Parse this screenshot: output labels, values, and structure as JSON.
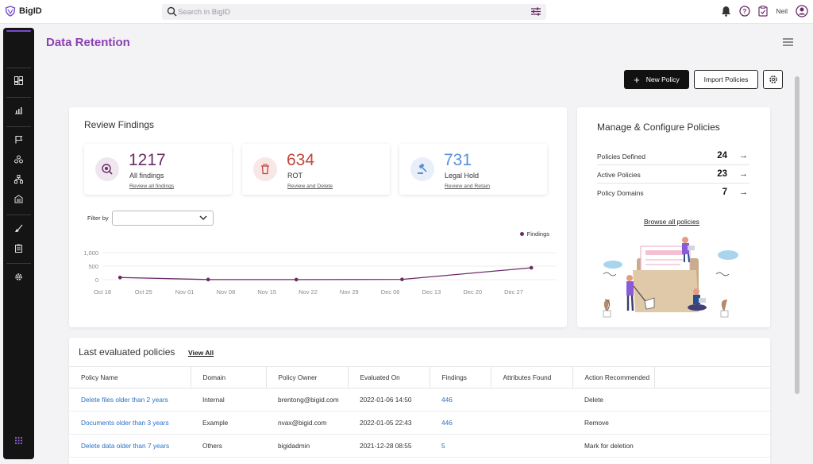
{
  "app": {
    "name": "BigID"
  },
  "search": {
    "placeholder": "Search in BigID"
  },
  "user": {
    "name": "Neil"
  },
  "page": {
    "title": "Data Retention"
  },
  "actions": {
    "new_policy": "New Policy",
    "import_policies": "Import Policies"
  },
  "review": {
    "title": "Review Findings",
    "stats": [
      {
        "value": "1217",
        "label": "All findings",
        "link": "Review all findings",
        "color": "#6a2c67",
        "icon": "eye-icon"
      },
      {
        "value": "634",
        "label": "ROT",
        "link": "Review and Delete",
        "color": "#c0473f",
        "icon": "trash-icon"
      },
      {
        "value": "731",
        "label": "Legal Hold",
        "link": "Review and Retain",
        "color": "#5b8fd8",
        "icon": "gavel-icon"
      }
    ],
    "filter_label": "Filter by",
    "filter_value": ""
  },
  "chart_data": {
    "type": "line",
    "series": [
      {
        "name": "Findings",
        "points": [
          [
            "Oct 21",
            80
          ],
          [
            "Nov 05",
            5
          ],
          [
            "Nov 20",
            3
          ],
          [
            "Dec 08",
            10
          ],
          [
            "Dec 30",
            440
          ]
        ]
      }
    ],
    "x_ticks": [
      "Oct 18",
      "Oct 25",
      "Nov 01",
      "Nov 08",
      "Nov 15",
      "Nov 22",
      "Nov 29",
      "Dec 06",
      "Dec 13",
      "Dec 20",
      "Dec 27"
    ],
    "y_ticks": [
      "1,000",
      "500",
      "0"
    ],
    "ylim": [
      0,
      1000
    ],
    "grid": true,
    "legend": "top-right",
    "color": "#6a2c67"
  },
  "manage": {
    "title": "Manage & Configure Policies",
    "rows": [
      {
        "label": "Policies Defined",
        "value": "24"
      },
      {
        "label": "Active Policies",
        "value": "23"
      },
      {
        "label": "Policy Domains",
        "value": "7"
      }
    ],
    "browse": "Browse all policies",
    "arrow": "→"
  },
  "last": {
    "title": "Last evaluated policies",
    "view_all": "View All",
    "columns": [
      "Policy Name",
      "Domain",
      "Policy Owner",
      "Evaluated On",
      "Findings",
      "Attributes Found",
      "Action Recommended",
      ""
    ],
    "rows": [
      [
        "Delete files older than 2 years",
        "Internal",
        "brentong@bigid.com",
        "2022-01-06 14:50",
        "446",
        "",
        "Delete",
        ""
      ],
      [
        "Documents older than 3 years",
        "Example",
        "nvax@bigid.com",
        "2022-01-05 22:43",
        "446",
        "",
        "Remove",
        ""
      ],
      [
        "Delete data older than 7 years",
        "Others",
        "bigidadmin",
        "2021-12-28 08:55",
        "5",
        "",
        "Mark for deletion",
        ""
      ]
    ]
  }
}
